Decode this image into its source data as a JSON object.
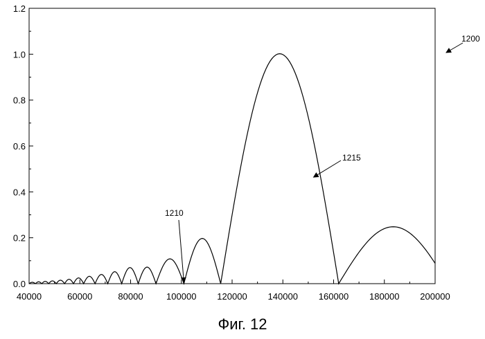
{
  "figure": {
    "caption": "Фиг. 12",
    "ref_numeral": "1200"
  },
  "chart_data": {
    "type": "line",
    "title": "",
    "xlabel": "",
    "ylabel": "",
    "xlim": [
      40000,
      200000
    ],
    "ylim": [
      0.0,
      1.2
    ],
    "x_ticks": [
      {
        "value": 40000,
        "label": "40000"
      },
      {
        "value": 60000,
        "label": "60000"
      },
      {
        "value": 80000,
        "label": "80000"
      },
      {
        "value": 100000,
        "label": "100000"
      },
      {
        "value": 120000,
        "label": "120000"
      },
      {
        "value": 140000,
        "label": "140000"
      },
      {
        "value": 160000,
        "label": "160000"
      },
      {
        "value": 180000,
        "label": "180000"
      },
      {
        "value": 200000,
        "label": "200000"
      }
    ],
    "y_ticks": [
      {
        "value": 0.0,
        "label": "0.0"
      },
      {
        "value": 0.2,
        "label": "0.2"
      },
      {
        "value": 0.4,
        "label": "0.4"
      },
      {
        "value": 0.6,
        "label": "0.6"
      },
      {
        "value": 0.8,
        "label": "0.8"
      },
      {
        "value": 1.0,
        "label": "1.0"
      },
      {
        "value": 1.2,
        "label": "1.2"
      }
    ],
    "grid": false,
    "legend": "none",
    "series": [
      {
        "lobes": [
          {
            "start": 40000,
            "end": 42500,
            "peak": 0.006
          },
          {
            "start": 42500,
            "end": 45000,
            "peak": 0.008
          },
          {
            "start": 45000,
            "end": 47700,
            "peak": 0.01
          },
          {
            "start": 47700,
            "end": 50700,
            "peak": 0.012
          },
          {
            "start": 50700,
            "end": 54000,
            "peak": 0.015
          },
          {
            "start": 54000,
            "end": 57500,
            "peak": 0.019
          },
          {
            "start": 57500,
            "end": 61500,
            "peak": 0.025
          },
          {
            "start": 61500,
            "end": 66000,
            "peak": 0.032
          },
          {
            "start": 66000,
            "end": 71000,
            "peak": 0.04
          },
          {
            "start": 71000,
            "end": 76500,
            "peak": 0.052
          },
          {
            "start": 76500,
            "end": 83000,
            "peak": 0.07
          },
          {
            "start": 83000,
            "end": 90000,
            "peak": 0.072
          },
          {
            "start": 90000,
            "end": 101000,
            "peak": 0.108
          },
          {
            "start": 101000,
            "end": 115500,
            "peak": 0.197
          },
          {
            "start": 115500,
            "end": 162000,
            "peak": 1.002
          },
          {
            "start": 162000,
            "end": 205000,
            "peak": 0.248
          }
        ]
      }
    ],
    "annotations": [
      {
        "label": "1210",
        "target_x": 101000,
        "target_y": 0.0
      },
      {
        "label": "1215",
        "target_x": 151000,
        "target_y": 0.47
      }
    ]
  }
}
